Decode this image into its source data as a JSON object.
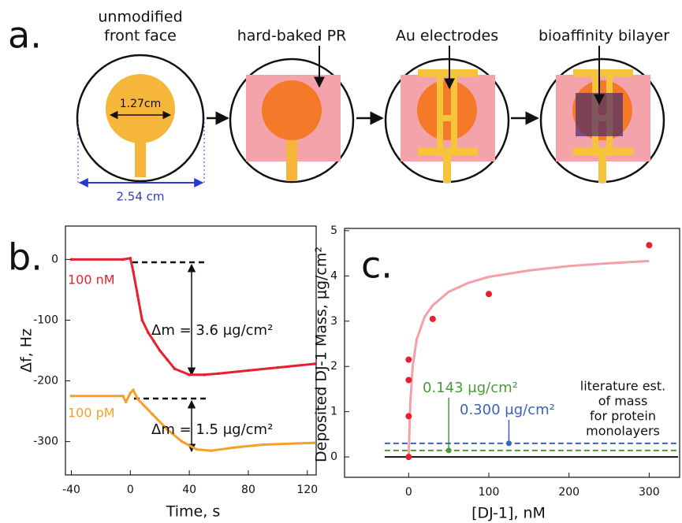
{
  "diagram": {
    "panel_label": "a.",
    "steps": [
      {
        "lines": [
          "unmodified",
          "front face"
        ]
      },
      {
        "lines": [
          "hard-baked PR"
        ]
      },
      {
        "lines": [
          "Au electrodes"
        ]
      },
      {
        "lines": [
          "bioaffinity bilayer"
        ]
      }
    ],
    "disc_diameter": "1.27cm",
    "face_diameter": "2.54 cm"
  },
  "chart_data": [
    {
      "type": "line",
      "panel_label": "b.",
      "x_label": "Time, s",
      "y_label": "Δf, Hz",
      "xlim": [
        -44,
        126
      ],
      "ylim": [
        -355,
        55
      ],
      "xticks": [
        -40,
        0,
        40,
        80,
        120
      ],
      "yticks": [
        0,
        -100,
        -200,
        -300
      ],
      "series": [
        {
          "name": "100 nM",
          "color": "#e8202e",
          "x": [
            -40,
            -5,
            0,
            2,
            5,
            8,
            12,
            16,
            20,
            25,
            30,
            40,
            50,
            60,
            80,
            100,
            125
          ],
          "values": [
            0,
            0,
            2,
            -20,
            -60,
            -100,
            -120,
            -135,
            -150,
            -165,
            -180,
            -190,
            -190,
            -188,
            -183,
            -178,
            -172
          ]
        },
        {
          "name": "100 pM",
          "color": "#f5a02a",
          "x": [
            -40,
            -5,
            -3,
            0,
            2,
            5,
            15,
            25,
            35,
            45,
            55,
            70,
            90,
            125
          ],
          "values": [
            -225,
            -225,
            -235,
            -220,
            -215,
            -230,
            -255,
            -280,
            -300,
            -313,
            -315,
            -310,
            -305,
            -302
          ]
        }
      ],
      "annotations": [
        "Δm = 3.6 μg/cm²",
        "Δm = 1.5 μg/cm²"
      ]
    },
    {
      "type": "scatter",
      "panel_label": "c.",
      "x_label": "[DJ-1], nM",
      "y_label": "Deposited DJ-1 Mass, μg/cm²",
      "xlim": [
        -80,
        338
      ],
      "ylim": [
        -0.45,
        5.05
      ],
      "xticks": [
        0,
        100,
        200,
        300
      ],
      "yticks": [
        0,
        1,
        2,
        3,
        4,
        5
      ],
      "series": [
        {
          "type": "line",
          "color": "#f4a0a8",
          "x": [
            0,
            2,
            5,
            10,
            20,
            30,
            50,
            75,
            100,
            150,
            200,
            250,
            300
          ],
          "values": [
            0,
            1.2,
            2.0,
            2.6,
            3.1,
            3.35,
            3.65,
            3.85,
            3.98,
            4.12,
            4.22,
            4.28,
            4.33
          ]
        },
        {
          "type": "scatter",
          "color": "#e8202e",
          "x": [
            0,
            0,
            0,
            0,
            30,
            100,
            300
          ],
          "values": [
            0,
            0.9,
            1.7,
            2.15,
            3.05,
            3.6,
            4.68
          ]
        }
      ],
      "hlines": [
        {
          "value": 0,
          "color": "#111111"
        },
        {
          "value": 0.143,
          "color": "#4a9a3a",
          "label": "0.143 μg/cm²"
        },
        {
          "value": 0.3,
          "color": "#3a62b8",
          "label": "0.300 μg/cm²"
        }
      ],
      "note": [
        "literature est.",
        "of mass",
        "for protein",
        "monolayers"
      ]
    }
  ]
}
